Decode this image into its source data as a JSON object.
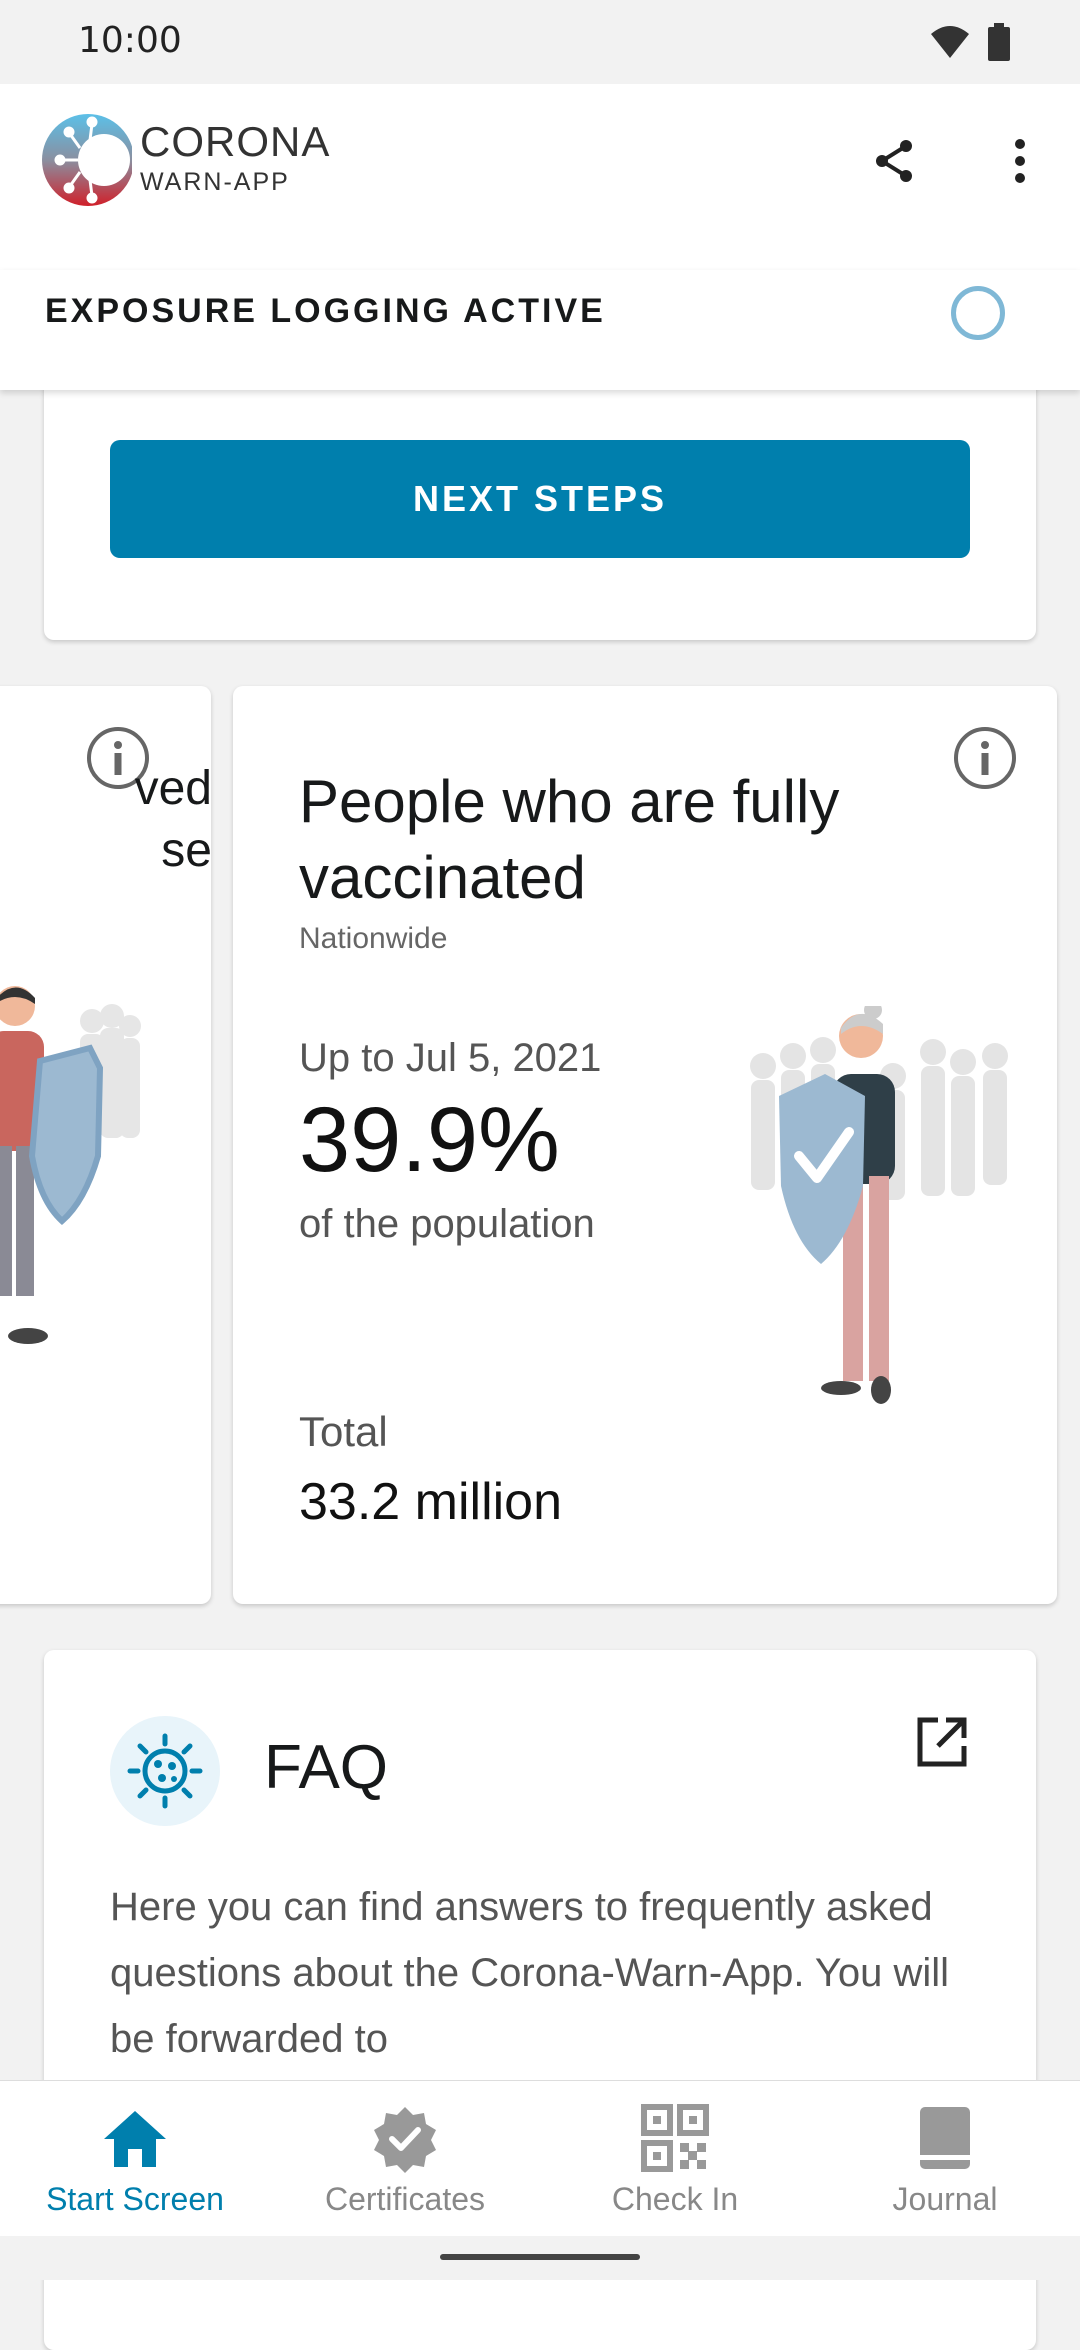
{
  "status": {
    "time": "10:00"
  },
  "app": {
    "logo_line1": "CORONA",
    "logo_line2": "WARN-APP"
  },
  "exposure": {
    "label": "EXPOSURE LOGGING ACTIVE"
  },
  "risk_card": {
    "button_label": "NEXT STEPS"
  },
  "left_card": {
    "text_line1": "ved",
    "text_line2": "se"
  },
  "vaccination_card": {
    "title": "People who are fully vaccinated",
    "subtitle": "Nationwide",
    "date": "Up to Jul 5, 2021",
    "value": "39.9%",
    "value_unit": "of the population",
    "total_label": "Total",
    "total_value": "33.2 million"
  },
  "faq": {
    "title": "FAQ",
    "text": "Here you can find answers to frequently asked questions about the Corona-Warn-App. You will be forwarded to"
  },
  "nav": {
    "items": [
      {
        "label": "Start Screen",
        "icon": "home-icon"
      },
      {
        "label": "Certificates",
        "icon": "certificate-icon"
      },
      {
        "label": "Check In",
        "icon": "qr-code-icon"
      },
      {
        "label": "Journal",
        "icon": "journal-icon"
      }
    ]
  },
  "colors": {
    "accent": "#007fad",
    "active_ring": "#7fb8d6",
    "shield": "#9cb9d1"
  }
}
